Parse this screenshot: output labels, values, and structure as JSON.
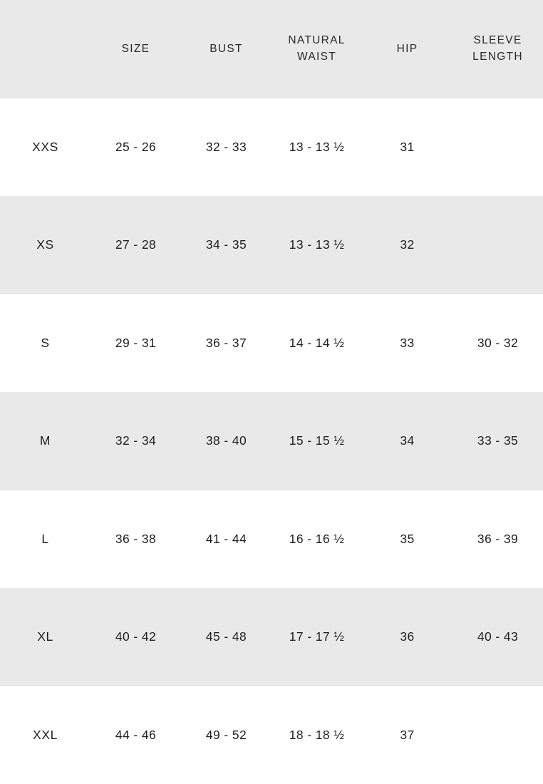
{
  "table": {
    "headers": {
      "label": "",
      "size": "SIZE",
      "bust": "BUST",
      "natural_waist": "NATURAL WAIST",
      "hip": "HIP",
      "sleeve_length": "SLEEVE LENGTH"
    },
    "rows": [
      {
        "label": "XXS",
        "size": "25 - 26",
        "bust": "32 - 33",
        "natural_waist": "13 - 13 ½",
        "hip": "31",
        "sleeve_length": ""
      },
      {
        "label": "XS",
        "size": "27 - 28",
        "bust": "34 - 35",
        "natural_waist": "13 - 13 ½",
        "hip": "32",
        "sleeve_length": ""
      },
      {
        "label": "S",
        "size": "29 - 31",
        "bust": "36 - 37",
        "natural_waist": "14 - 14 ½",
        "hip": "33",
        "sleeve_length": "30 - 32"
      },
      {
        "label": "M",
        "size": "32 - 34",
        "bust": "38 - 40",
        "natural_waist": "15 - 15 ½",
        "hip": "34",
        "sleeve_length": "33 - 35"
      },
      {
        "label": "L",
        "size": "36 - 38",
        "bust": "41 - 44",
        "natural_waist": "16 - 16 ½",
        "hip": "35",
        "sleeve_length": "36 - 39"
      },
      {
        "label": "XL",
        "size": "40 - 42",
        "bust": "45 - 48",
        "natural_waist": "17 - 17 ½",
        "hip": "36",
        "sleeve_length": "40 - 43"
      },
      {
        "label": "XXL",
        "size": "44 - 46",
        "bust": "49 - 52",
        "natural_waist": "18 - 18 ½",
        "hip": "37",
        "sleeve_length": ""
      }
    ]
  },
  "colors": {
    "row_shade": "#e9e9e9",
    "background": "#ffffff",
    "text": "#1f1f1f"
  }
}
